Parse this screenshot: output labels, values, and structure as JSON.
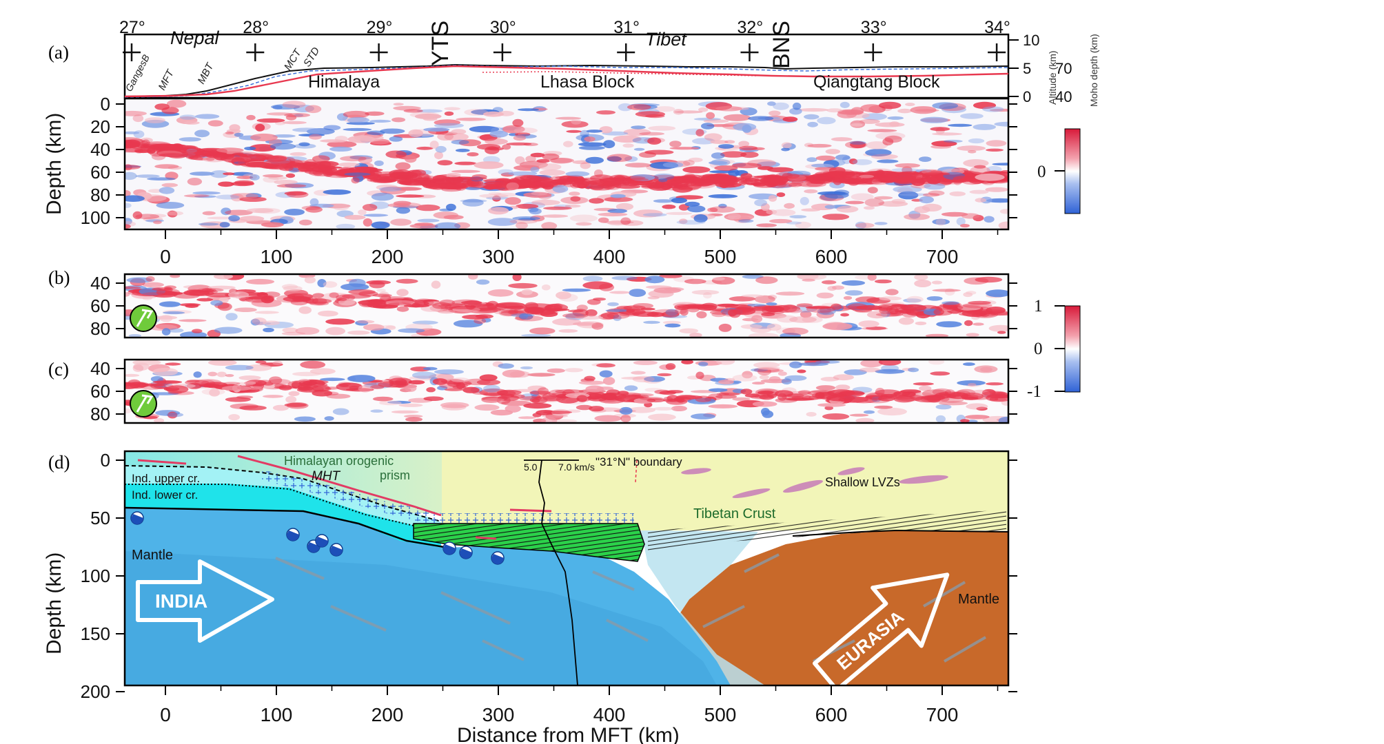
{
  "panel_labels": [
    "(a)",
    "(b)",
    "(c)",
    "(d)"
  ],
  "top_axis": {
    "longitudes": [
      {
        "deg": 27,
        "label": "27°"
      },
      {
        "deg": 28,
        "label": "28°"
      },
      {
        "deg": 29,
        "label": "29°"
      },
      {
        "deg": 30,
        "label": "30°"
      },
      {
        "deg": 31,
        "label": "31°"
      },
      {
        "deg": 32,
        "label": "32°"
      },
      {
        "deg": 33,
        "label": "33°"
      },
      {
        "deg": 34,
        "label": "34°"
      }
    ],
    "region_labels": {
      "nepal": "Nepal",
      "tibet": "Tibet"
    },
    "sutures": {
      "yts": "YTS",
      "bns": "BNS"
    },
    "fault_labels": {
      "ganges": "GangesB",
      "mft": "MFT",
      "mbt": "MBT",
      "mct": "MCT",
      "std": "STD"
    },
    "blocks": {
      "himalaya": "Himalaya",
      "lhasa": "Lhasa Block",
      "qiangtang": "Qiangtang Block"
    },
    "right_axis": {
      "altitude_label": "Altitude (km)",
      "altitude_ticks": [
        "10",
        "5",
        "0"
      ],
      "moho_label": "Moho depth (km)",
      "moho_ticks": [
        "70",
        "40"
      ]
    }
  },
  "distance_axis": {
    "ticks": [
      "0",
      "100",
      "200",
      "300",
      "400",
      "500",
      "600",
      "700"
    ],
    "xlabel": "Distance from MFT (km)"
  },
  "panel_a": {
    "ylabel": "Depth (km)",
    "yticks": [
      "0",
      "20",
      "40",
      "60",
      "80",
      "100"
    ],
    "colorbar_ticks": [
      "0"
    ]
  },
  "panel_bc": {
    "yticks": [
      "40",
      "60",
      "80"
    ],
    "colorbar_ticks": [
      "1",
      "0",
      "-1"
    ]
  },
  "panel_d": {
    "ylabel": "Depth (km)",
    "yticks": [
      "0",
      "50",
      "100",
      "150",
      "200"
    ],
    "labels": {
      "orogenic": "Himalayan orogenic",
      "prism": "prism",
      "mht": "MHT",
      "upper_cr": "Ind. upper cr.",
      "lower_cr": "Ind. lower cr.",
      "mantle_left": "Mantle",
      "india": "INDIA",
      "boundary": "\"31°N\" boundary",
      "vel_a": "5.0",
      "vel_b": "7.0 km/s",
      "shallow_lvz": "Shallow LVZs",
      "tibetan_crust": "Tibetan Crust",
      "eurasia": "EURASIA",
      "mantle_right": "Mantle"
    }
  },
  "colors": {
    "positive": "#e8384f",
    "negative": "#3c6fd8",
    "india_mantle": "#4fb3e8",
    "eurasia_mantle": "#c8692a",
    "green_layer": "#2bd14a"
  }
}
